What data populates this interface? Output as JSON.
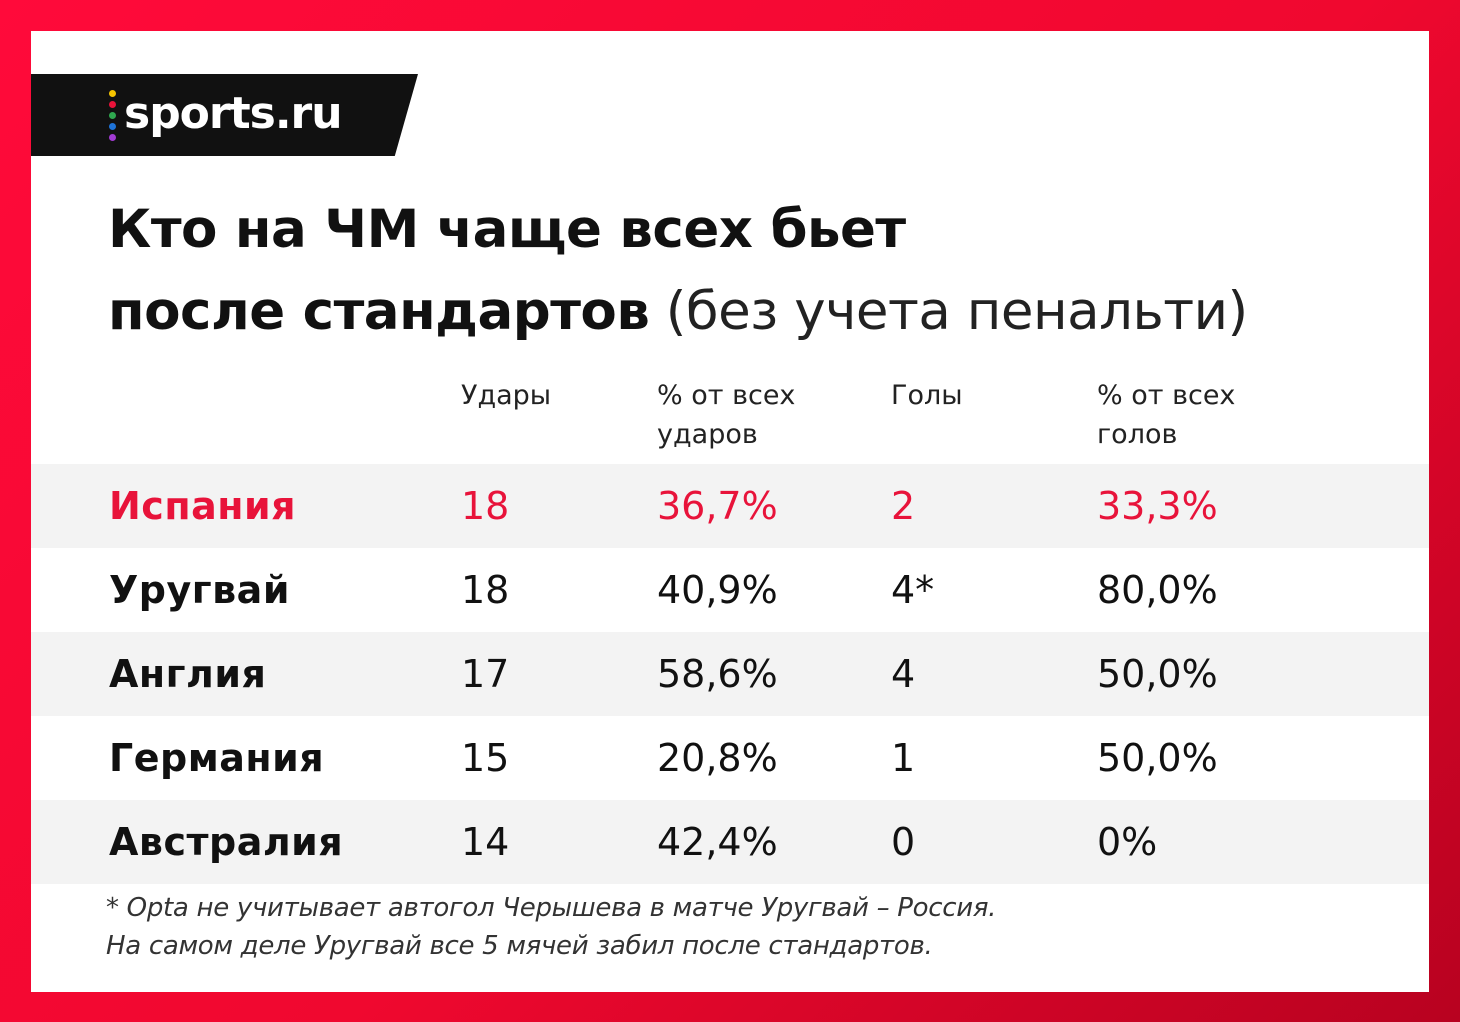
{
  "brand": {
    "logo_text": "sports.ru",
    "dot_colors": [
      "#f5c400",
      "#e8133a",
      "#2fa84f",
      "#1e73d8",
      "#a23bd3"
    ]
  },
  "colors": {
    "frame": "#f0082f",
    "highlight": "#e8133a"
  },
  "title": {
    "bold_line1": "Кто на ЧМ чаще всех бьет",
    "bold_line2": "после стандартов",
    "light_suffix": " (без учета пенальти)"
  },
  "table": {
    "headers": [
      "Удары",
      "% от всех\nударов",
      "Голы",
      "% от всех\nголов"
    ],
    "rows": [
      {
        "team": "Испания",
        "shots": "18",
        "shots_pct": "36,7%",
        "goals": "2",
        "goals_pct": "33,3%"
      },
      {
        "team": "Уругвай",
        "shots": "18",
        "shots_pct": "40,9%",
        "goals": "4*",
        "goals_pct": "80,0%"
      },
      {
        "team": "Англия",
        "shots": "17",
        "shots_pct": "58,6%",
        "goals": "4",
        "goals_pct": "50,0%"
      },
      {
        "team": "Германия",
        "shots": "15",
        "shots_pct": "20,8%",
        "goals": "1",
        "goals_pct": "50,0%"
      },
      {
        "team": "Австралия",
        "shots": "14",
        "shots_pct": "42,4%",
        "goals": "0",
        "goals_pct": "0%"
      }
    ]
  },
  "footnote": {
    "line1": "* Opta не учитывает автогол Черышева в матче Уругвай – Россия.",
    "line2": "На самом деле Уругвай все 5 мячей забил после стандартов."
  }
}
